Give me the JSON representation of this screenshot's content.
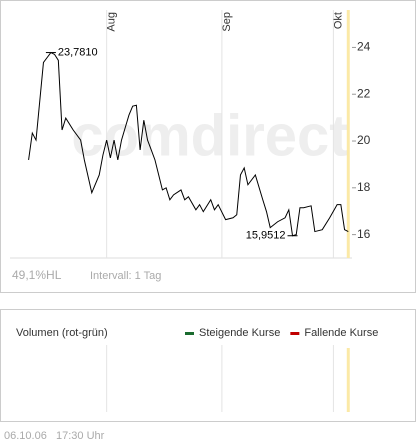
{
  "chart_data": {
    "type": "line",
    "watermark": "comdirect",
    "x": [
      192,
      193,
      194,
      196,
      197,
      198,
      199,
      200,
      201,
      202,
      204,
      206,
      207,
      209,
      211,
      212,
      213,
      214,
      215,
      216,
      217,
      219,
      220,
      221,
      222,
      223,
      224,
      225,
      226,
      228,
      229,
      230,
      231,
      233,
      234,
      235,
      237,
      238,
      239,
      241,
      242,
      243,
      245,
      247,
      248,
      249,
      250,
      251,
      253,
      255,
      256,
      257,
      259,
      261,
      262,
      263,
      264,
      265,
      266,
      268,
      269,
      271,
      273,
      275,
      276,
      277,
      278
    ],
    "series": [
      {
        "color": "#000000",
        "values": [
          19.19,
          20.34,
          20.04,
          23.36,
          23.57,
          23.781,
          23.7,
          23.45,
          20.47,
          20.98,
          20.47,
          20.04,
          19.19,
          17.79,
          18.55,
          19.4,
          20.04,
          19.28,
          20.04,
          19.19,
          20.04,
          21.11,
          21.49,
          21.53,
          19.62,
          20.89,
          20.04,
          19.62,
          19.19,
          17.91,
          18.0,
          17.49,
          17.7,
          17.91,
          17.49,
          17.62,
          17.06,
          17.28,
          16.98,
          17.49,
          17.06,
          17.28,
          16.64,
          16.72,
          16.85,
          18.55,
          18.85,
          18.13,
          18.55,
          17.49,
          16.98,
          16.3,
          16.55,
          16.72,
          17.06,
          15.9512,
          16.0,
          17.15,
          17.15,
          17.23,
          16.13,
          16.21,
          16.72,
          17.28,
          17.28,
          16.21,
          16.13
        ]
      }
    ],
    "max_label": "23,7810",
    "min_label": "15,9512",
    "xlim": [
      187,
      279
    ],
    "xticks": [
      {
        "value": 213,
        "label": "Aug"
      },
      {
        "value": 244,
        "label": "Sep"
      },
      {
        "value": 274,
        "label": "Okt"
      }
    ],
    "ylim": [
      15,
      25.6
    ],
    "yticks": [
      16,
      18,
      20,
      22,
      24
    ],
    "today": 278,
    "range_label": "49,1%HL",
    "interval_label": "Intervall: 1 Tag",
    "volume": {
      "title": "Volumen (rot-grün)",
      "legend": [
        {
          "name": "Steigende Kurse",
          "color": "#1a6b2e"
        },
        {
          "name": "Fallende Kurse",
          "color": "#c00000"
        }
      ]
    },
    "timestamp": "06.10.06   17:30 Uhr"
  }
}
